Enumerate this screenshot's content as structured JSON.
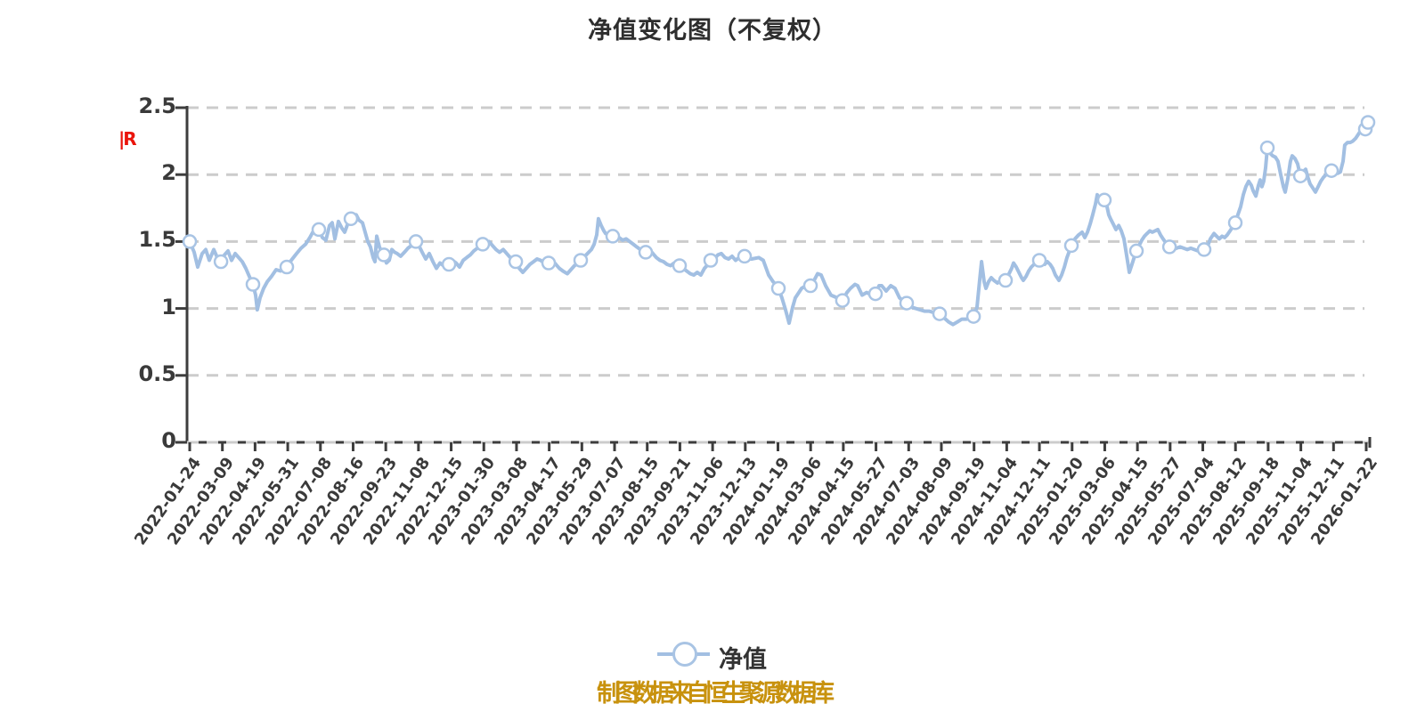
{
  "title": "净值变化图（不复权）",
  "y_axis_unit_marker": "|R",
  "legend": {
    "label": "净值"
  },
  "footer": {
    "source_text": "制图数据来自恒生聚源数据库"
  },
  "colors": {
    "line": "#a2bfe2",
    "marker_ring": "#a9c4e4",
    "marker_fill": "#ffffff",
    "grid": "#cccccc",
    "axis": "#3d3d3d",
    "label_text": "#3a3a3a",
    "title_text": "#2e2e2e",
    "footer_text": "#c8920e",
    "unit_marker_red": "#ea140b"
  },
  "chart_data": {
    "type": "line",
    "title": "净值变化图（不复权）",
    "series_name": "净值",
    "x_range": [
      "2022-01-24",
      "2026-01-22"
    ],
    "ylim": [
      0,
      2.5
    ],
    "y_ticks": [
      0,
      0.5,
      1,
      1.5,
      2,
      2.5
    ],
    "y_tick_labels": [
      "0",
      "0.5",
      "1",
      "1.5",
      "2",
      "2.5"
    ],
    "x_tick_labels": [
      "2022-01-24",
      "2022-03-09",
      "2022-04-19",
      "2022-05-31",
      "2022-07-08",
      "2022-08-16",
      "2022-09-23",
      "2022-11-08",
      "2022-12-15",
      "2023-01-30",
      "2023-03-08",
      "2023-04-17",
      "2023-05-29",
      "2023-07-07",
      "2023-08-15",
      "2023-09-21",
      "2023-11-06",
      "2023-12-13",
      "2024-01-19",
      "2024-03-06",
      "2024-04-15",
      "2024-05-27",
      "2024-07-03",
      "2024-08-09",
      "2024-09-19",
      "2024-11-04",
      "2024-12-11",
      "2025-01-20",
      "2025-03-06",
      "2025-04-15",
      "2025-05-27",
      "2025-07-04",
      "2025-08-12",
      "2025-09-18",
      "2025-11-04",
      "2025-12-11",
      "2026-01-22"
    ],
    "grid": "dashed-horizontal",
    "legend_position": "bottom-center",
    "points": [
      [
        0.0,
        1.5
      ],
      [
        0.0038,
        1.42
      ],
      [
        0.0068,
        1.31
      ],
      [
        0.0106,
        1.41
      ],
      [
        0.0136,
        1.44
      ],
      [
        0.0166,
        1.36
      ],
      [
        0.0204,
        1.44
      ],
      [
        0.0234,
        1.38
      ],
      [
        0.0265,
        1.35
      ],
      [
        0.0295,
        1.4
      ],
      [
        0.0325,
        1.43
      ],
      [
        0.0355,
        1.36
      ],
      [
        0.0386,
        1.41
      ],
      [
        0.0416,
        1.38
      ],
      [
        0.0446,
        1.35
      ],
      [
        0.0476,
        1.3
      ],
      [
        0.0506,
        1.24
      ],
      [
        0.0537,
        1.18
      ],
      [
        0.0559,
        1.1
      ],
      [
        0.0574,
        0.99
      ],
      [
        0.0597,
        1.08
      ],
      [
        0.0627,
        1.15
      ],
      [
        0.0658,
        1.2
      ],
      [
        0.0695,
        1.24
      ],
      [
        0.0733,
        1.29
      ],
      [
        0.0771,
        1.28
      ],
      [
        0.0824,
        1.31
      ],
      [
        0.0862,
        1.36
      ],
      [
        0.0907,
        1.41
      ],
      [
        0.0945,
        1.45
      ],
      [
        0.0983,
        1.48
      ],
      [
        0.102,
        1.53
      ],
      [
        0.1051,
        1.58
      ],
      [
        0.1096,
        1.59
      ],
      [
        0.1126,
        1.53
      ],
      [
        0.1156,
        1.51
      ],
      [
        0.1187,
        1.62
      ],
      [
        0.1209,
        1.64
      ],
      [
        0.1232,
        1.52
      ],
      [
        0.1262,
        1.65
      ],
      [
        0.1292,
        1.6
      ],
      [
        0.1315,
        1.57
      ],
      [
        0.1345,
        1.64
      ],
      [
        0.1368,
        1.67
      ],
      [
        0.1398,
        1.68
      ],
      [
        0.1413,
        1.7
      ],
      [
        0.1436,
        1.66
      ],
      [
        0.1466,
        1.64
      ],
      [
        0.1489,
        1.57
      ],
      [
        0.1512,
        1.5
      ],
      [
        0.1534,
        1.46
      ],
      [
        0.1557,
        1.38
      ],
      [
        0.1572,
        1.35
      ],
      [
        0.1587,
        1.54
      ],
      [
        0.161,
        1.46
      ],
      [
        0.1625,
        1.43
      ],
      [
        0.1648,
        1.4
      ],
      [
        0.167,
        1.34
      ],
      [
        0.1693,
        1.36
      ],
      [
        0.1716,
        1.44
      ],
      [
        0.1739,
        1.42
      ],
      [
        0.1761,
        1.41
      ],
      [
        0.1791,
        1.39
      ],
      [
        0.1822,
        1.42
      ],
      [
        0.1852,
        1.45
      ],
      [
        0.1882,
        1.47
      ],
      [
        0.192,
        1.5
      ],
      [
        0.195,
        1.46
      ],
      [
        0.1973,
        1.42
      ],
      [
        0.2003,
        1.37
      ],
      [
        0.2033,
        1.41
      ],
      [
        0.2064,
        1.35
      ],
      [
        0.2094,
        1.3
      ],
      [
        0.2124,
        1.34
      ],
      [
        0.2154,
        1.32
      ],
      [
        0.22,
        1.33
      ],
      [
        0.223,
        1.36
      ],
      [
        0.226,
        1.34
      ],
      [
        0.229,
        1.31
      ],
      [
        0.2321,
        1.36
      ],
      [
        0.2351,
        1.38
      ],
      [
        0.2381,
        1.4
      ],
      [
        0.2411,
        1.43
      ],
      [
        0.2441,
        1.45
      ],
      [
        0.2487,
        1.48
      ],
      [
        0.2517,
        1.49
      ],
      [
        0.254,
        1.5
      ],
      [
        0.257,
        1.47
      ],
      [
        0.26,
        1.44
      ],
      [
        0.263,
        1.42
      ],
      [
        0.2661,
        1.44
      ],
      [
        0.2691,
        1.41
      ],
      [
        0.2721,
        1.38
      ],
      [
        0.2767,
        1.35
      ],
      [
        0.2797,
        1.3
      ],
      [
        0.2827,
        1.27
      ],
      [
        0.2857,
        1.3
      ],
      [
        0.2887,
        1.33
      ],
      [
        0.2918,
        1.35
      ],
      [
        0.2948,
        1.37
      ],
      [
        0.2978,
        1.36
      ],
      [
        0.3008,
        1.34
      ],
      [
        0.3046,
        1.34
      ],
      [
        0.3076,
        1.36
      ],
      [
        0.3107,
        1.33
      ],
      [
        0.3137,
        1.3
      ],
      [
        0.3167,
        1.28
      ],
      [
        0.3205,
        1.26
      ],
      [
        0.3235,
        1.29
      ],
      [
        0.3265,
        1.32
      ],
      [
        0.3296,
        1.34
      ],
      [
        0.3318,
        1.36
      ],
      [
        0.3364,
        1.4
      ],
      [
        0.3409,
        1.44
      ],
      [
        0.3432,
        1.48
      ],
      [
        0.3454,
        1.55
      ],
      [
        0.3469,
        1.67
      ],
      [
        0.3492,
        1.62
      ],
      [
        0.3515,
        1.58
      ],
      [
        0.353,
        1.56
      ],
      [
        0.356,
        1.55
      ],
      [
        0.359,
        1.54
      ],
      [
        0.3621,
        1.55
      ],
      [
        0.3643,
        1.53
      ],
      [
        0.3674,
        1.51
      ],
      [
        0.3704,
        1.52
      ],
      [
        0.3734,
        1.5
      ],
      [
        0.3764,
        1.48
      ],
      [
        0.3794,
        1.46
      ],
      [
        0.3825,
        1.44
      ],
      [
        0.387,
        1.42
      ],
      [
        0.39,
        1.44
      ],
      [
        0.3931,
        1.41
      ],
      [
        0.3961,
        1.38
      ],
      [
        0.3991,
        1.36
      ],
      [
        0.4021,
        1.35
      ],
      [
        0.4051,
        1.33
      ],
      [
        0.4082,
        1.32
      ],
      [
        0.4112,
        1.34
      ],
      [
        0.4157,
        1.32
      ],
      [
        0.4187,
        1.3
      ],
      [
        0.4218,
        1.28
      ],
      [
        0.4248,
        1.26
      ],
      [
        0.4278,
        1.25
      ],
      [
        0.4308,
        1.27
      ],
      [
        0.4338,
        1.25
      ],
      [
        0.4369,
        1.3
      ],
      [
        0.4399,
        1.33
      ],
      [
        0.4422,
        1.36
      ],
      [
        0.4452,
        1.37
      ],
      [
        0.4482,
        1.4
      ],
      [
        0.4512,
        1.41
      ],
      [
        0.4543,
        1.38
      ],
      [
        0.4573,
        1.37
      ],
      [
        0.4603,
        1.39
      ],
      [
        0.4633,
        1.36
      ],
      [
        0.4663,
        1.38
      ],
      [
        0.4709,
        1.39
      ],
      [
        0.4739,
        1.37
      ],
      [
        0.4769,
        1.37
      ],
      [
        0.483,
        1.38
      ],
      [
        0.4868,
        1.36
      ],
      [
        0.4913,
        1.25
      ],
      [
        0.4951,
        1.2
      ],
      [
        0.4973,
        1.18
      ],
      [
        0.4996,
        1.15
      ],
      [
        0.5026,
        1.08
      ],
      [
        0.5057,
        0.99
      ],
      [
        0.5087,
        0.89
      ],
      [
        0.5117,
        1.01
      ],
      [
        0.514,
        1.08
      ],
      [
        0.517,
        1.12
      ],
      [
        0.5193,
        1.15
      ],
      [
        0.5231,
        1.17
      ],
      [
        0.5268,
        1.17
      ],
      [
        0.5299,
        1.21
      ],
      [
        0.5329,
        1.26
      ],
      [
        0.5359,
        1.25
      ],
      [
        0.5397,
        1.17
      ],
      [
        0.5442,
        1.1
      ],
      [
        0.5495,
        1.08
      ],
      [
        0.554,
        1.06
      ],
      [
        0.5578,
        1.12
      ],
      [
        0.5608,
        1.15
      ],
      [
        0.5646,
        1.18
      ],
      [
        0.5669,
        1.17
      ],
      [
        0.5707,
        1.1
      ],
      [
        0.5745,
        1.12
      ],
      [
        0.5782,
        1.1
      ],
      [
        0.582,
        1.11
      ],
      [
        0.585,
        1.17
      ],
      [
        0.5873,
        1.17
      ],
      [
        0.5911,
        1.13
      ],
      [
        0.5949,
        1.17
      ],
      [
        0.5986,
        1.15
      ],
      [
        0.6024,
        1.08
      ],
      [
        0.6062,
        1.05
      ],
      [
        0.6085,
        1.04
      ],
      [
        0.6123,
        1.01
      ],
      [
        0.6161,
        1.0
      ],
      [
        0.6198,
        0.99
      ],
      [
        0.6236,
        0.98
      ],
      [
        0.6274,
        0.98
      ],
      [
        0.6312,
        0.97
      ],
      [
        0.6364,
        0.96
      ],
      [
        0.6402,
        0.93
      ],
      [
        0.644,
        0.9
      ],
      [
        0.6478,
        0.88
      ],
      [
        0.6516,
        0.9
      ],
      [
        0.6553,
        0.92
      ],
      [
        0.6591,
        0.92
      ],
      [
        0.6629,
        0.93
      ],
      [
        0.6652,
        0.94
      ],
      [
        0.6682,
        1.01
      ],
      [
        0.6705,
        1.22
      ],
      [
        0.672,
        1.35
      ],
      [
        0.6742,
        1.2
      ],
      [
        0.6757,
        1.15
      ],
      [
        0.678,
        1.2
      ],
      [
        0.6803,
        1.23
      ],
      [
        0.6825,
        1.21
      ],
      [
        0.6856,
        1.19
      ],
      [
        0.6894,
        1.22
      ],
      [
        0.6924,
        1.21
      ],
      [
        0.6954,
        1.26
      ],
      [
        0.6976,
        1.3
      ],
      [
        0.6992,
        1.34
      ],
      [
        0.7014,
        1.31
      ],
      [
        0.7037,
        1.27
      ],
      [
        0.706,
        1.23
      ],
      [
        0.7075,
        1.21
      ],
      [
        0.7098,
        1.24
      ],
      [
        0.712,
        1.28
      ],
      [
        0.7143,
        1.31
      ],
      [
        0.7166,
        1.33
      ],
      [
        0.7188,
        1.35
      ],
      [
        0.7211,
        1.36
      ],
      [
        0.7234,
        1.35
      ],
      [
        0.7256,
        1.33
      ],
      [
        0.7279,
        1.35
      ],
      [
        0.7302,
        1.33
      ],
      [
        0.7324,
        1.3
      ],
      [
        0.7347,
        1.25
      ],
      [
        0.7377,
        1.21
      ],
      [
        0.74,
        1.25
      ],
      [
        0.7423,
        1.31
      ],
      [
        0.7445,
        1.38
      ],
      [
        0.7483,
        1.47
      ],
      [
        0.7513,
        1.52
      ],
      [
        0.7544,
        1.55
      ],
      [
        0.7574,
        1.57
      ],
      [
        0.7596,
        1.53
      ],
      [
        0.7619,
        1.57
      ],
      [
        0.7642,
        1.63
      ],
      [
        0.7664,
        1.7
      ],
      [
        0.7687,
        1.78
      ],
      [
        0.7702,
        1.85
      ],
      [
        0.7725,
        1.82
      ],
      [
        0.774,
        1.78
      ],
      [
        0.7763,
        1.81
      ],
      [
        0.7785,
        1.76
      ],
      [
        0.78,
        1.7
      ],
      [
        0.7815,
        1.67
      ],
      [
        0.7838,
        1.63
      ],
      [
        0.7861,
        1.59
      ],
      [
        0.7884,
        1.62
      ],
      [
        0.7906,
        1.58
      ],
      [
        0.7929,
        1.52
      ],
      [
        0.7951,
        1.4
      ],
      [
        0.7974,
        1.27
      ],
      [
        0.7997,
        1.33
      ],
      [
        0.8019,
        1.39
      ],
      [
        0.8035,
        1.43
      ],
      [
        0.8057,
        1.47
      ],
      [
        0.808,
        1.51
      ],
      [
        0.8103,
        1.54
      ],
      [
        0.8125,
        1.56
      ],
      [
        0.8148,
        1.58
      ],
      [
        0.8171,
        1.57
      ],
      [
        0.8193,
        1.58
      ],
      [
        0.8216,
        1.59
      ],
      [
        0.8239,
        1.55
      ],
      [
        0.8261,
        1.52
      ],
      [
        0.8284,
        1.49
      ],
      [
        0.8315,
        1.46
      ],
      [
        0.8345,
        1.44
      ],
      [
        0.8375,
        1.45
      ],
      [
        0.8405,
        1.46
      ],
      [
        0.8436,
        1.45
      ],
      [
        0.8466,
        1.44
      ],
      [
        0.8496,
        1.45
      ],
      [
        0.8526,
        1.44
      ],
      [
        0.8557,
        1.43
      ],
      [
        0.8609,
        1.44
      ],
      [
        0.864,
        1.47
      ],
      [
        0.8662,
        1.52
      ],
      [
        0.8693,
        1.56
      ],
      [
        0.8715,
        1.54
      ],
      [
        0.8738,
        1.52
      ],
      [
        0.8761,
        1.54
      ],
      [
        0.8783,
        1.53
      ],
      [
        0.8806,
        1.55
      ],
      [
        0.8829,
        1.58
      ],
      [
        0.8851,
        1.61
      ],
      [
        0.8874,
        1.64
      ],
      [
        0.8896,
        1.7
      ],
      [
        0.8919,
        1.76
      ],
      [
        0.8942,
        1.85
      ],
      [
        0.8964,
        1.91
      ],
      [
        0.8987,
        1.95
      ],
      [
        0.901,
        1.92
      ],
      [
        0.9025,
        1.88
      ],
      [
        0.9048,
        1.84
      ],
      [
        0.907,
        1.92
      ],
      [
        0.9085,
        1.96
      ],
      [
        0.91,
        1.91
      ],
      [
        0.9115,
        1.95
      ],
      [
        0.9131,
        2.05
      ],
      [
        0.9146,
        2.2
      ],
      [
        0.9168,
        2.16
      ],
      [
        0.9191,
        2.14
      ],
      [
        0.9214,
        2.13
      ],
      [
        0.9236,
        2.1
      ],
      [
        0.9259,
        2.0
      ],
      [
        0.9282,
        1.91
      ],
      [
        0.9297,
        1.87
      ],
      [
        0.932,
        1.97
      ],
      [
        0.9342,
        2.1
      ],
      [
        0.9357,
        2.14
      ],
      [
        0.938,
        2.12
      ],
      [
        0.9403,
        2.08
      ],
      [
        0.9426,
        1.99
      ],
      [
        0.9448,
        2.02
      ],
      [
        0.9471,
        2.04
      ],
      [
        0.9486,
        1.99
      ],
      [
        0.9509,
        1.93
      ],
      [
        0.9531,
        1.9
      ],
      [
        0.9554,
        1.87
      ],
      [
        0.9577,
        1.91
      ],
      [
        0.9599,
        1.95
      ],
      [
        0.9622,
        1.98
      ],
      [
        0.9645,
        2.0
      ],
      [
        0.9667,
        2.02
      ],
      [
        0.969,
        2.03
      ],
      [
        0.9705,
        2.06
      ],
      [
        0.9728,
        2.03
      ],
      [
        0.9743,
        2.01
      ],
      [
        0.9766,
        2.02
      ],
      [
        0.9788,
        2.1
      ],
      [
        0.9803,
        2.22
      ],
      [
        0.9826,
        2.24
      ],
      [
        0.9849,
        2.24
      ],
      [
        0.9871,
        2.25
      ],
      [
        0.9894,
        2.27
      ],
      [
        0.9917,
        2.3
      ],
      [
        0.9939,
        2.33
      ],
      [
        0.9962,
        2.35
      ],
      [
        0.9977,
        2.34
      ],
      [
        1.0,
        2.39
      ]
    ],
    "markers": [
      [
        0.0,
        1.5
      ],
      [
        0.0265,
        1.35
      ],
      [
        0.0537,
        1.18
      ],
      [
        0.0824,
        1.31
      ],
      [
        0.1096,
        1.59
      ],
      [
        0.1368,
        1.67
      ],
      [
        0.1648,
        1.4
      ],
      [
        0.192,
        1.5
      ],
      [
        0.22,
        1.33
      ],
      [
        0.2487,
        1.48
      ],
      [
        0.2767,
        1.35
      ],
      [
        0.3046,
        1.34
      ],
      [
        0.3318,
        1.36
      ],
      [
        0.359,
        1.54
      ],
      [
        0.387,
        1.42
      ],
      [
        0.4157,
        1.32
      ],
      [
        0.4422,
        1.36
      ],
      [
        0.4709,
        1.39
      ],
      [
        0.4996,
        1.15
      ],
      [
        0.5268,
        1.17
      ],
      [
        0.554,
        1.06
      ],
      [
        0.582,
        1.11
      ],
      [
        0.6085,
        1.04
      ],
      [
        0.6364,
        0.96
      ],
      [
        0.6652,
        0.94
      ],
      [
        0.6924,
        1.21
      ],
      [
        0.7211,
        1.36
      ],
      [
        0.7483,
        1.47
      ],
      [
        0.7763,
        1.81
      ],
      [
        0.8035,
        1.43
      ],
      [
        0.8315,
        1.46
      ],
      [
        0.8609,
        1.44
      ],
      [
        0.8874,
        1.64
      ],
      [
        0.9146,
        2.2
      ],
      [
        0.9426,
        1.99
      ],
      [
        0.969,
        2.03
      ],
      [
        0.9977,
        2.34
      ],
      [
        1.0,
        2.39
      ]
    ]
  }
}
